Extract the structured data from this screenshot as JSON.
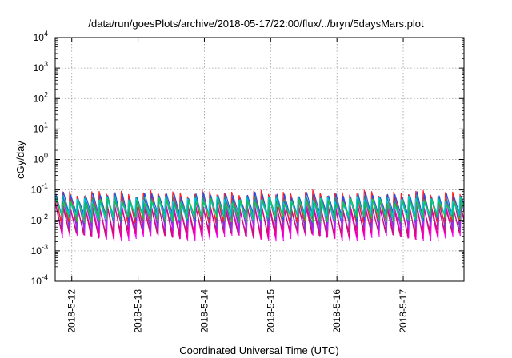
{
  "chart_data": {
    "type": "line",
    "title": "/data/run/goesPlots/archive/2018-05-17/22:00/flux/../bryn/5daysMars.plot",
    "xlabel": "Coordinated Universal Time (UTC)",
    "ylabel": "cGy/day",
    "yscale": "log",
    "ylim": [
      0.0001,
      10000
    ],
    "xlim": [
      "2018-05-11T18:00Z",
      "2018-05-17T22:00Z"
    ],
    "grid": true,
    "x_ticks": [
      "2018-5-12",
      "2018-5-13",
      "2018-5-14",
      "2018-5-15",
      "2018-5-16",
      "2018-5-17"
    ],
    "y_ticks": [
      {
        "base": "10",
        "exp": "-4"
      },
      {
        "base": "10",
        "exp": "-3"
      },
      {
        "base": "10",
        "exp": "-2"
      },
      {
        "base": "10",
        "exp": "-1"
      },
      {
        "base": "10",
        "exp": "0"
      },
      {
        "base": "10",
        "exp": "1"
      },
      {
        "base": "10",
        "exp": "2"
      },
      {
        "base": "10",
        "exp": "3"
      },
      {
        "base": "10",
        "exp": "4"
      }
    ],
    "pattern": {
      "description": "sawtooth oscillation, ~9 cycles per day, each series peaks near start of cycle then decays",
      "cycles_per_day": 9
    },
    "series": [
      {
        "color": "#ff00ff",
        "peak": 0.025,
        "trough": 0.003
      },
      {
        "color": "#e8008a",
        "peak": 0.03,
        "trough": 0.0035
      },
      {
        "color": "#c01870",
        "peak": 0.035,
        "trough": 0.0045
      },
      {
        "color": "#9b30ff",
        "peak": 0.05,
        "trough": 0.006
      },
      {
        "color": "#7a3cc8",
        "peak": 0.06,
        "trough": 0.008
      },
      {
        "color": "#ff2020",
        "peak": 0.08,
        "trough": 0.012
      },
      {
        "color": "#2050e0",
        "peak": 0.07,
        "trough": 0.013
      },
      {
        "color": "#00a0a0",
        "peak": 0.055,
        "trough": 0.014
      },
      {
        "color": "#00cfe0",
        "peak": 0.05,
        "trough": 0.015
      },
      {
        "color": "#20c040",
        "peak": 0.045,
        "trough": 0.012
      }
    ]
  }
}
